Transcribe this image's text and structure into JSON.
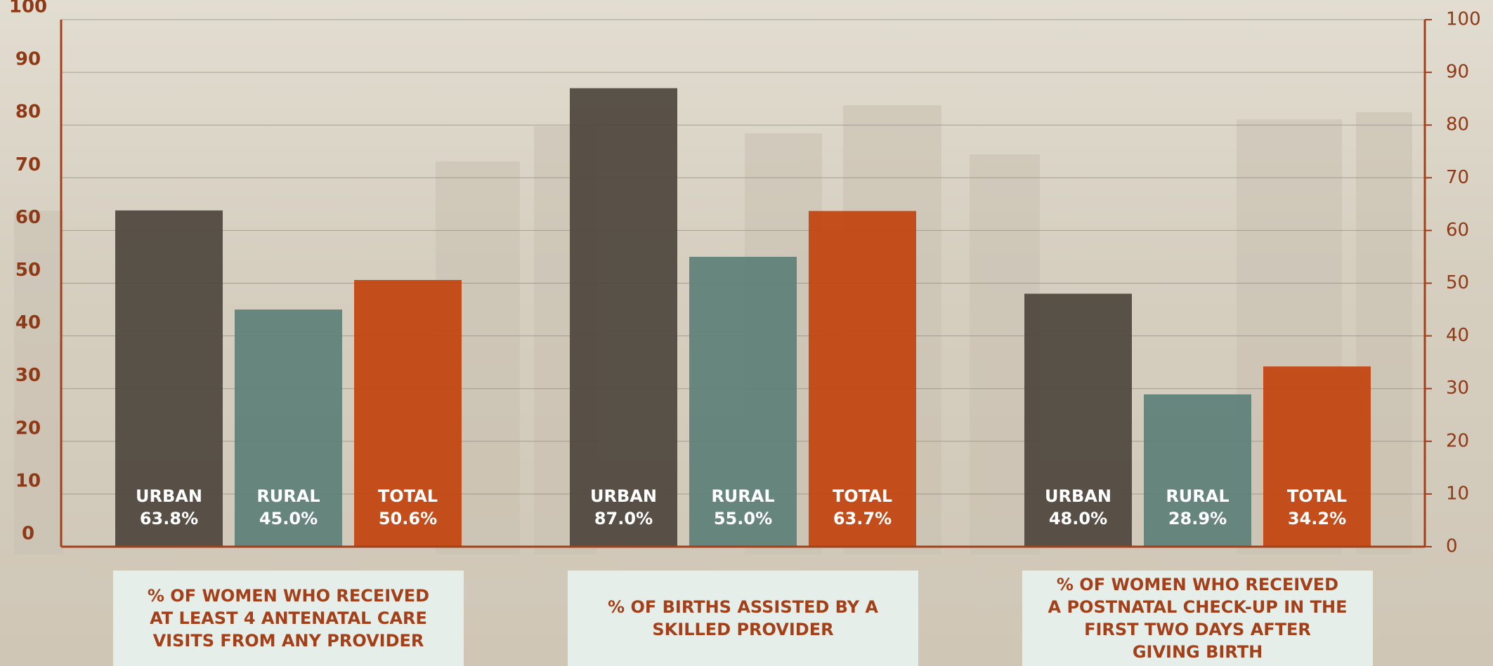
{
  "chart_data": {
    "type": "bar",
    "categories": [
      "% OF WOMEN WHO RECEIVED AT LEAST 4 ANTENATAL CARE VISITS FROM ANY PROVIDER",
      "% OF BIRTHS ASSISTED BY A SKILLED PROVIDER",
      "% OF WOMEN WHO RECEIVED A POSTNATAL CHECK-UP IN THE FIRST TWO DAYS AFTER GIVING BIRTH"
    ],
    "series": [
      {
        "name": "URBAN",
        "color": "#4f473e",
        "values": [
          63.8,
          87.0,
          48.0
        ],
        "value_labels": [
          "63.8%",
          "87.0%",
          "48.0%"
        ]
      },
      {
        "name": "RURAL",
        "color": "#5e8079",
        "values": [
          45.0,
          55.0,
          28.9
        ],
        "value_labels": [
          "45.0%",
          "55.0%",
          "28.9%"
        ]
      },
      {
        "name": "TOTAL",
        "color": "#c2440f",
        "values": [
          50.6,
          63.7,
          34.2
        ],
        "value_labels": [
          "50.6%",
          "63.7%",
          "34.2%"
        ]
      }
    ],
    "ylim": [
      0,
      100
    ],
    "yticks": [
      0,
      10,
      20,
      30,
      40,
      50,
      60,
      70,
      80,
      90,
      100
    ],
    "y2lim": [
      0,
      100
    ],
    "y2ticks": [
      0,
      10,
      20,
      30,
      40,
      50,
      60,
      70,
      80,
      90,
      100
    ],
    "grid": true
  }
}
